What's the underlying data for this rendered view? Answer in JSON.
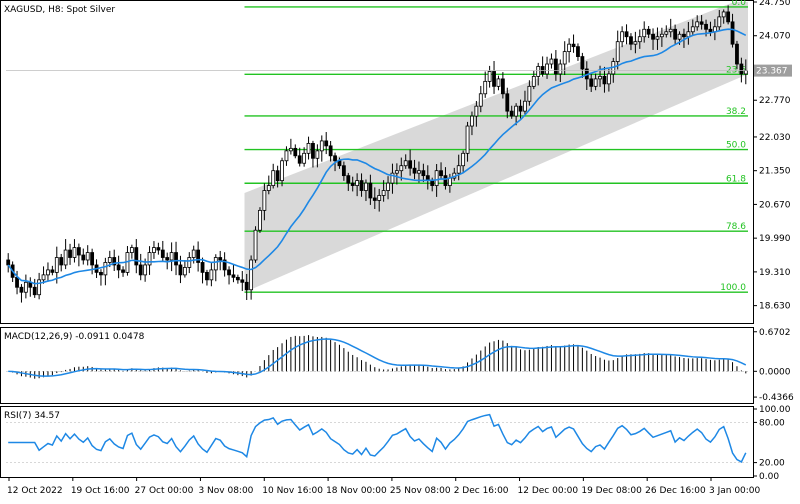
{
  "header": {
    "main_title": "XAGUSD, H8:  Spot Silver",
    "macd_label": "MACD(12,26,9) -0.0911 0.0478",
    "rsi_label": "RSI(7) 34.57"
  },
  "colors": {
    "candle_up": "#000000",
    "candle_down": "#000000",
    "ma_line": "#1e88e5",
    "channel_fill": "#d9d9d9",
    "fib_line": "#22c322",
    "fib_text": "#22c322",
    "rsi_line": "#1e88e5",
    "macd_signal": "#1e88e5",
    "price_tag_bg": "#9e9e9e"
  },
  "chart_data": [
    {
      "type": "candlestick",
      "name": "price",
      "symbol": "XAGUSD",
      "timeframe": "H8",
      "ylim": [
        18.3,
        24.75
      ],
      "y_ticks": [
        "24.750",
        "24.070",
        "23.367",
        "22.770",
        "22.030",
        "21.350",
        "20.670",
        "19.990",
        "19.310",
        "18.630"
      ],
      "current_price": "23.367",
      "moving_average_color": "#1e88e5",
      "channel": {
        "lower_start": 18.9,
        "lower_end": 23.3,
        "upper_start": 20.9,
        "upper_end": 24.75
      },
      "fibonacci": {
        "high": 24.65,
        "low": 18.9,
        "levels": [
          {
            "ratio": 0,
            "label": "0.0"
          },
          {
            "ratio": 0.236,
            "label": "23.6"
          },
          {
            "ratio": 0.382,
            "label": "38.2"
          },
          {
            "ratio": 0.5,
            "label": "50.0"
          },
          {
            "ratio": 0.618,
            "label": "61.8"
          },
          {
            "ratio": 0.786,
            "label": "78.6"
          },
          {
            "ratio": 1.0,
            "label": "100.0"
          }
        ]
      },
      "close": [
        19.45,
        19.2,
        19.0,
        18.9,
        19.1,
        19.0,
        18.85,
        19.15,
        19.25,
        19.35,
        19.3,
        19.6,
        19.45,
        19.75,
        19.6,
        19.8,
        19.65,
        19.55,
        19.7,
        19.45,
        19.3,
        19.25,
        19.5,
        19.6,
        19.45,
        19.35,
        19.3,
        19.7,
        19.8,
        19.45,
        19.25,
        19.45,
        19.7,
        19.8,
        19.75,
        19.6,
        19.55,
        19.7,
        19.45,
        19.25,
        19.4,
        19.6,
        19.75,
        19.5,
        19.3,
        19.15,
        19.35,
        19.6,
        19.55,
        19.35,
        19.25,
        19.2,
        19.15,
        19.1,
        18.95,
        19.55,
        20.15,
        20.55,
        20.95,
        21.05,
        21.35,
        21.15,
        21.55,
        21.75,
        21.8,
        21.65,
        21.5,
        21.7,
        21.9,
        21.6,
        21.75,
        21.95,
        21.85,
        21.65,
        21.55,
        21.45,
        21.25,
        21.1,
        21.05,
        21.15,
        20.95,
        21.1,
        20.8,
        20.75,
        20.85,
        20.95,
        21.1,
        21.3,
        21.35,
        21.45,
        21.55,
        21.4,
        21.3,
        21.35,
        21.25,
        21.15,
        21.05,
        21.35,
        21.25,
        21.05,
        21.2,
        21.3,
        21.45,
        21.7,
        22.25,
        22.45,
        22.65,
        22.9,
        23.15,
        23.35,
        23.05,
        23.2,
        22.9,
        22.55,
        22.45,
        22.65,
        22.55,
        22.75,
        23.05,
        23.25,
        23.45,
        23.3,
        23.5,
        23.6,
        23.3,
        23.5,
        23.75,
        23.9,
        23.85,
        23.65,
        23.4,
        23.2,
        23.05,
        23.2,
        23.25,
        23.1,
        23.3,
        23.55,
        23.95,
        24.15,
        24.05,
        23.9,
        23.95,
        24.05,
        24.2,
        24.1,
        24.0,
        24.05,
        24.1,
        24.15,
        24.2,
        24.0,
        24.1,
        24.05,
        24.15,
        24.25,
        24.35,
        24.3,
        24.2,
        24.15,
        24.25,
        24.45,
        24.55,
        24.35,
        23.9,
        23.5,
        23.3,
        23.37
      ],
      "x_ticks": [
        "12 Oct 2022",
        "19 Oct 16:00",
        "27 Oct 00:00",
        "3 Nov 08:00",
        "10 Nov 16:00",
        "18 Nov 00:00",
        "25 Nov 08:00",
        "2 Dec 16:00",
        "12 Dec 00:00",
        "19 Dec 08:00",
        "26 Dec 16:00",
        "3 Jan 00:00"
      ]
    },
    {
      "type": "bar",
      "name": "MACD(12,26,9)",
      "ylim": [
        -0.52,
        0.7
      ],
      "y_ticks": [
        "0.6702",
        "0.0000",
        "-0.4366"
      ],
      "macd_value": -0.0911,
      "signal_value": 0.0478
    },
    {
      "type": "line",
      "name": "RSI(7)",
      "ylim": [
        0,
        100
      ],
      "y_ticks": [
        "100.00",
        "80.00",
        "20.00",
        "0.00"
      ],
      "value": 34.57
    }
  ]
}
